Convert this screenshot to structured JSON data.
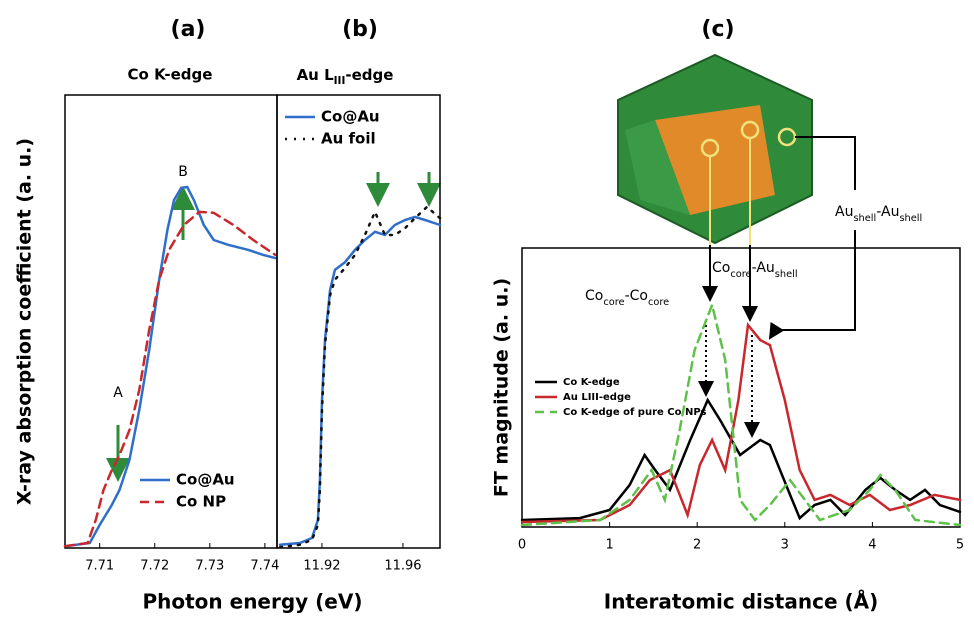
{
  "chart_data": [
    {
      "type": "line",
      "title": "(a)",
      "subtitle": "Co K-edge",
      "xlabel": "Photon energy (eV)",
      "ylabel": "X-ray absorption coefficient (a. u.)",
      "xlim": [
        7.7037,
        7.7422
      ],
      "ylim": [
        0,
        1
      ],
      "xticks": [
        7.71,
        7.72,
        7.73,
        7.74
      ],
      "annotations": [
        "A",
        "B"
      ],
      "series": [
        {
          "name": "Co@Au",
          "color": "#2f6fc9",
          "linestyle": "solid",
          "x": [
            7.7037,
            7.7082,
            7.71,
            7.7122,
            7.7136,
            7.7154,
            7.7172,
            7.719,
            7.7208,
            7.7223,
            7.7235,
            7.7248,
            7.7259,
            7.7271,
            7.7289,
            7.7307,
            7.7334,
            7.737,
            7.7397,
            7.7419
          ],
          "values": [
            0.004,
            0.011,
            0.051,
            0.095,
            0.128,
            0.194,
            0.305,
            0.437,
            0.592,
            0.702,
            0.768,
            0.795,
            0.797,
            0.768,
            0.713,
            0.68,
            0.669,
            0.658,
            0.647,
            0.64
          ]
        },
        {
          "name": "Co NP",
          "color": "#c8282c",
          "linestyle": "dashed",
          "x": [
            7.7037,
            7.7078,
            7.7093,
            7.7107,
            7.7122,
            7.7136,
            7.7154,
            7.7172,
            7.719,
            7.7208,
            7.7226,
            7.7253,
            7.7281,
            7.7307,
            7.7343,
            7.7379,
            7.7419
          ],
          "values": [
            0.004,
            0.011,
            0.062,
            0.128,
            0.172,
            0.205,
            0.26,
            0.349,
            0.481,
            0.592,
            0.658,
            0.713,
            0.742,
            0.74,
            0.713,
            0.68,
            0.647
          ]
        }
      ]
    },
    {
      "type": "line",
      "title": "(b)",
      "subtitle": {
        "parts": [
          "Au L",
          "III",
          "-edge"
        ]
      },
      "xlim": [
        11.8978,
        11.9783
      ],
      "ylim": [
        0,
        1
      ],
      "xticks": [
        11.92,
        11.96
      ],
      "series": [
        {
          "name": "Co@Au",
          "color": "#2f6fc9",
          "linestyle": "solid",
          "x": [
            11.8993,
            11.9091,
            11.9151,
            11.918,
            11.919,
            11.92,
            11.9215,
            11.924,
            11.9264,
            11.9314,
            11.9363,
            11.9412,
            11.9462,
            11.9511,
            11.956,
            11.961,
            11.9659,
            11.9709,
            11.9783
          ],
          "values": [
            0.007,
            0.011,
            0.022,
            0.062,
            0.15,
            0.327,
            0.459,
            0.57,
            0.614,
            0.631,
            0.658,
            0.68,
            0.698,
            0.691,
            0.713,
            0.724,
            0.731,
            0.724,
            0.713
          ]
        },
        {
          "name": "Au foil",
          "color": "#111111",
          "linestyle": "dotted",
          "x": [
            11.8993,
            11.9091,
            11.9151,
            11.918,
            11.919,
            11.92,
            11.9215,
            11.924,
            11.9264,
            11.9314,
            11.9363,
            11.9412,
            11.9462,
            11.9511,
            11.956,
            11.961,
            11.9659,
            11.9719,
            11.9783
          ],
          "values": [
            0.002,
            0.007,
            0.018,
            0.051,
            0.128,
            0.305,
            0.448,
            0.558,
            0.592,
            0.618,
            0.647,
            0.691,
            0.742,
            0.691,
            0.691,
            0.706,
            0.728,
            0.753,
            0.728
          ]
        }
      ]
    },
    {
      "type": "line",
      "title": "(c)",
      "xlabel": "Interatomic distance (Å)",
      "ylabel": "FT magnitude (a. u.)",
      "xlim": [
        0,
        5
      ],
      "ylim": [
        0,
        1
      ],
      "xticks": [
        0,
        1,
        2,
        3,
        4,
        5
      ],
      "annotations": [
        {
          "parts": [
            "Co",
            "core",
            "-Co",
            "core"
          ]
        },
        {
          "parts": [
            "Co",
            "core",
            "-Au",
            "shell"
          ]
        },
        {
          "parts": [
            "Au",
            "shell",
            "-Au",
            "shell"
          ]
        }
      ],
      "series": [
        {
          "name": "Co K-edge",
          "color": "#000000",
          "linestyle": "solid",
          "x": [
            0,
            0.66,
            1.0,
            1.23,
            1.4,
            1.52,
            1.69,
            1.92,
            2.12,
            2.26,
            2.49,
            2.72,
            2.83,
            3.06,
            3.17,
            3.34,
            3.52,
            3.69,
            3.92,
            4.09,
            4.26,
            4.43,
            4.6,
            4.77,
            5.0
          ],
          "values": [
            0.025,
            0.032,
            0.061,
            0.151,
            0.258,
            0.204,
            0.133,
            0.312,
            0.455,
            0.384,
            0.258,
            0.312,
            0.294,
            0.115,
            0.032,
            0.079,
            0.097,
            0.043,
            0.133,
            0.176,
            0.133,
            0.097,
            0.133,
            0.079,
            0.054
          ]
        },
        {
          "name": "Au LIII-edge",
          "color": "#c8282c",
          "linestyle": "solid",
          "x": [
            0,
            0.89,
            1.23,
            1.46,
            1.69,
            1.89,
            2.03,
            2.17,
            2.32,
            2.47,
            2.58,
            2.72,
            2.83,
            3.0,
            3.17,
            3.34,
            3.52,
            3.74,
            3.97,
            4.2,
            4.43,
            4.71,
            5.0
          ],
          "values": [
            0.018,
            0.025,
            0.079,
            0.168,
            0.204,
            0.043,
            0.222,
            0.312,
            0.204,
            0.455,
            0.724,
            0.67,
            0.652,
            0.455,
            0.204,
            0.097,
            0.115,
            0.079,
            0.115,
            0.061,
            0.079,
            0.115,
            0.097
          ]
        },
        {
          "name": "Co K-edge of pure Co NPs",
          "color": "#5fc04a",
          "linestyle": "dashed",
          "x": [
            0,
            0.89,
            1.23,
            1.48,
            1.63,
            1.8,
            1.97,
            2.17,
            2.32,
            2.49,
            2.66,
            2.83,
            3.06,
            3.23,
            3.4,
            3.74,
            3.97,
            4.09,
            4.26,
            4.49,
            5.0
          ],
          "values": [
            0.007,
            0.025,
            0.097,
            0.204,
            0.097,
            0.348,
            0.634,
            0.796,
            0.599,
            0.097,
            0.025,
            0.079,
            0.168,
            0.097,
            0.025,
            0.061,
            0.133,
            0.186,
            0.133,
            0.025,
            0.007
          ]
        }
      ]
    }
  ]
}
